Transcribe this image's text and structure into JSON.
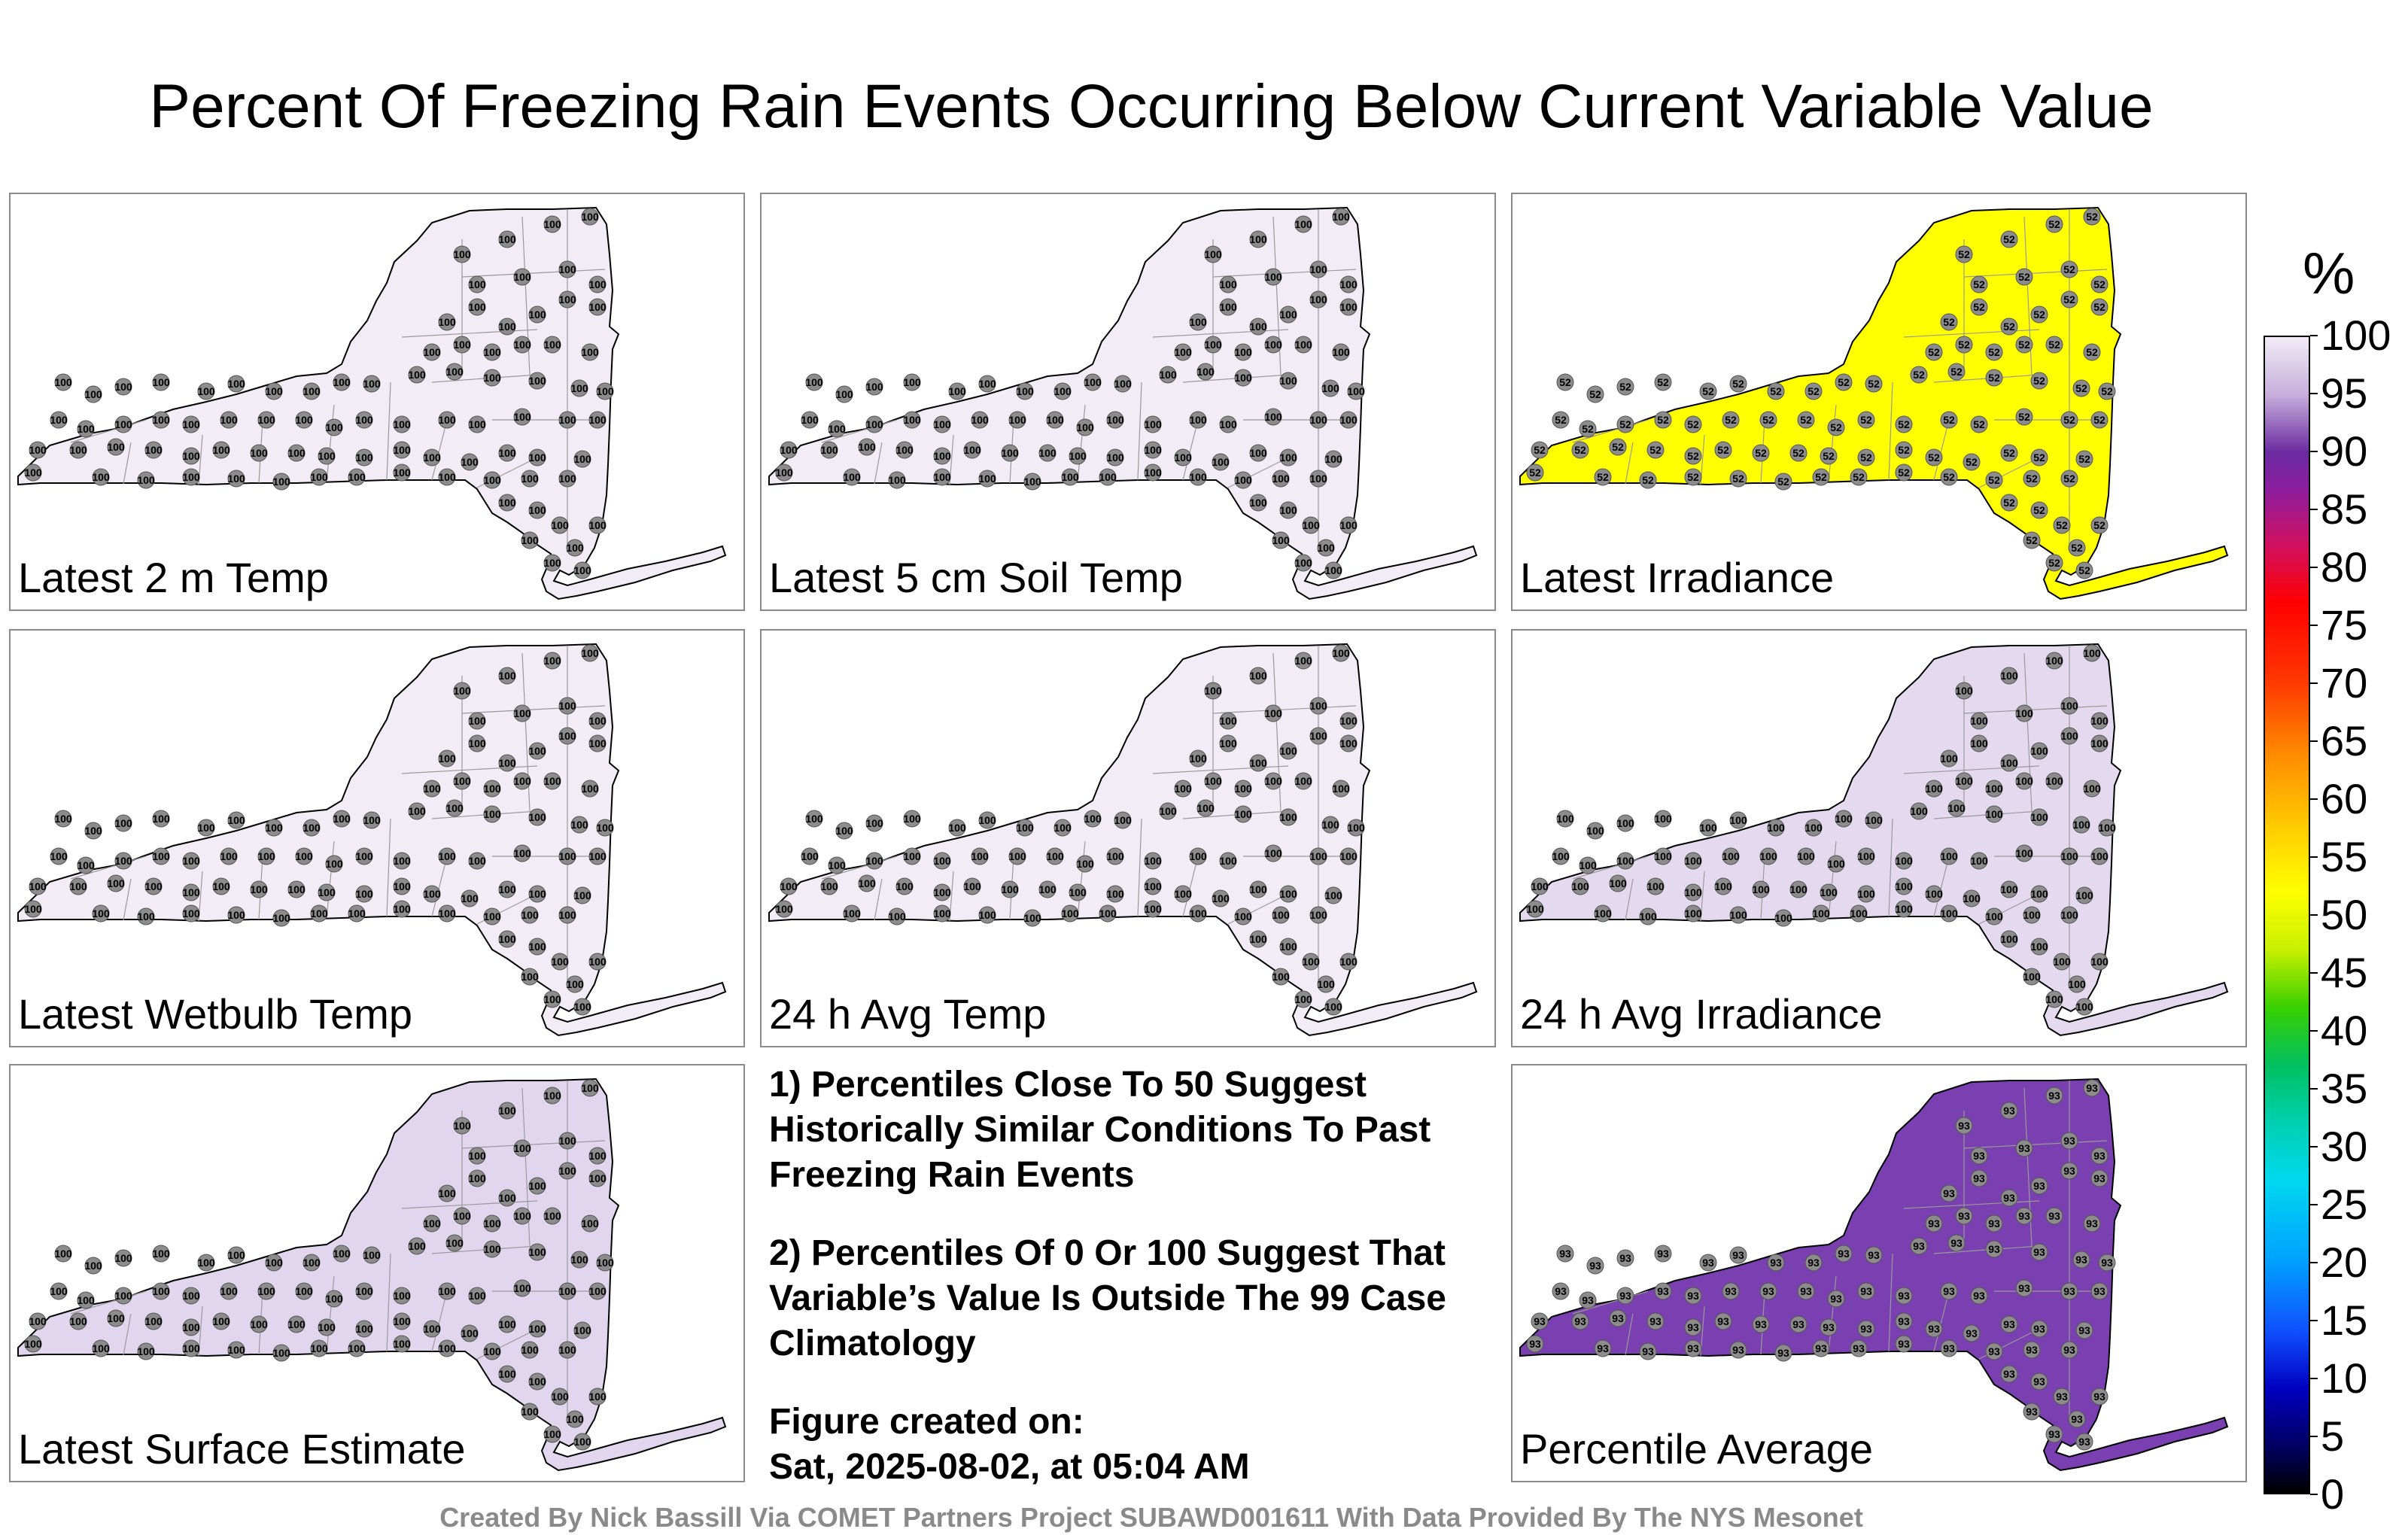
{
  "title": "Percent Of Freezing Rain Events Occurring Below Current Variable Value",
  "colors": {
    "near_white": "#ece6f2",
    "light_lavender": "#e0d4ec",
    "lavender": "#cdb8e0",
    "purple": "#7a3fb0",
    "yellow": "#ffff00",
    "station_marker": "#8c8c8c"
  },
  "panels": [
    {
      "label": "Latest 2 m Temp",
      "fill": "#f1ecf6",
      "station_value": "100",
      "icon": "new-york-state-map"
    },
    {
      "label": "Latest 5 cm Soil Temp",
      "fill": "#f1ecf6",
      "station_value": "100",
      "icon": "new-york-state-map"
    },
    {
      "label": "Latest Irradiance",
      "fill": "#ffff00",
      "station_value": "52",
      "icon": "new-york-state-map"
    },
    {
      "label": "Latest Wetbulb Temp",
      "fill": "#f1ecf6",
      "station_value": "100",
      "icon": "new-york-state-map"
    },
    {
      "label": "24 h Avg Temp",
      "fill": "#f1ecf6",
      "station_value": "100",
      "icon": "new-york-state-map"
    },
    {
      "label": "24 h Avg Irradiance",
      "fill": "#e4d9ef",
      "station_value": "100",
      "icon": "new-york-state-map"
    },
    {
      "label": "Latest Surface Estimate",
      "fill": "#e2d6ee",
      "station_value": "100",
      "icon": "new-york-state-map"
    },
    {
      "label": "Percentile Average",
      "fill": "#7a3fb0",
      "station_value": "93",
      "icon": "new-york-state-map"
    }
  ],
  "notes": {
    "note1": "1) Percentiles Close To 50 Suggest Historically Similar Conditions To Past Freezing Rain Events",
    "note2": "2) Percentiles Of 0 Or 100 Suggest That Variable’s Value Is Outside The 99 Case Climatology",
    "created_label": "Figure created on:",
    "created_value": "Sat, 2025-08-02, at 05:04 AM"
  },
  "footer": "Created By Nick Bassill Via COMET Partners Project SUBAWD001611 With Data Provided By The NYS Mesonet",
  "colorbar": {
    "unit": "%",
    "ticks": [
      "100",
      "95",
      "90",
      "85",
      "80",
      "75",
      "70",
      "65",
      "60",
      "55",
      "50",
      "45",
      "40",
      "35",
      "30",
      "25",
      "20",
      "15",
      "10",
      "5",
      "0"
    ],
    "stops": [
      {
        "v": 100,
        "c": "#f1ecf6"
      },
      {
        "v": 95,
        "c": "#c7afdc"
      },
      {
        "v": 90,
        "c": "#6a2aa0"
      },
      {
        "v": 87,
        "c": "#8a1ea0"
      },
      {
        "v": 82,
        "c": "#d01060"
      },
      {
        "v": 77,
        "c": "#ff0000"
      },
      {
        "v": 70,
        "c": "#ff3a00"
      },
      {
        "v": 64,
        "c": "#ff8a00"
      },
      {
        "v": 58,
        "c": "#ffc800"
      },
      {
        "v": 52,
        "c": "#ffff00"
      },
      {
        "v": 47,
        "c": "#c8f000"
      },
      {
        "v": 42,
        "c": "#38d000"
      },
      {
        "v": 37,
        "c": "#00c060"
      },
      {
        "v": 32,
        "c": "#00d0b0"
      },
      {
        "v": 27,
        "c": "#00d8f0"
      },
      {
        "v": 20,
        "c": "#00a0ff"
      },
      {
        "v": 14,
        "c": "#1050ff"
      },
      {
        "v": 9,
        "c": "#0000c0"
      },
      {
        "v": 4,
        "c": "#000060"
      },
      {
        "v": 0,
        "c": "#000000"
      }
    ]
  }
}
